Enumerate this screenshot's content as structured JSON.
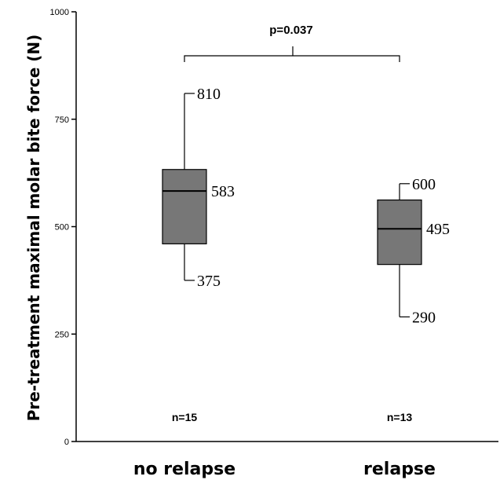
{
  "chart_data": {
    "type": "boxplot",
    "ylabel": "Pre-treatment maximal molar bite force (N)",
    "ylim": [
      0,
      1000
    ],
    "yticks": [
      0,
      250,
      500,
      750,
      1000
    ],
    "categories": [
      "no relapse",
      "relapse"
    ],
    "boxes": [
      {
        "category": "no relapse",
        "n_label": "n=15",
        "whisker_low": 375,
        "q1": 460,
        "median": 583,
        "q3": 633,
        "whisker_high": 810
      },
      {
        "category": "relapse",
        "n_label": "n=13",
        "whisker_low": 290,
        "q1": 412,
        "median": 495,
        "q3": 562,
        "whisker_high": 600
      }
    ],
    "annotations": {
      "p_value": "p=0.037",
      "no_relapse_max": "810",
      "no_relapse_median": "583",
      "no_relapse_min": "375",
      "relapse_max": "600",
      "relapse_median": "495",
      "relapse_min": "290"
    },
    "box_color": "#777777"
  }
}
